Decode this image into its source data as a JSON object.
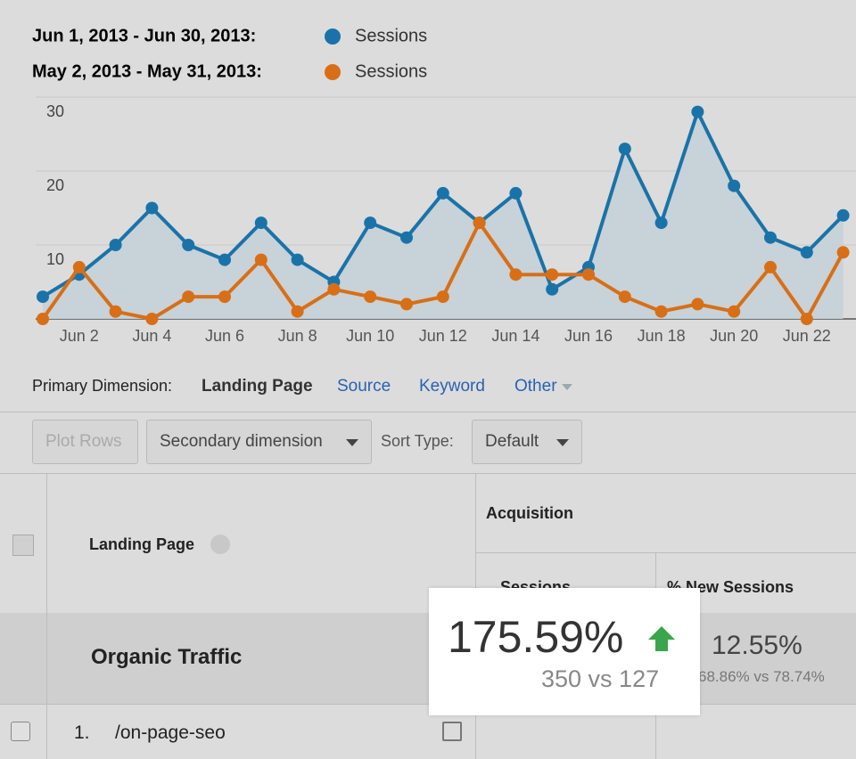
{
  "chart_data": {
    "type": "line",
    "legend": [
      {
        "period": "Jun 1, 2013 - Jun 30, 2013:",
        "name": "Sessions"
      },
      {
        "period": "May 2, 2013 - May 31, 2013:",
        "name": "Sessions"
      }
    ],
    "categories": [
      null,
      "Jun 2",
      null,
      "Jun 4",
      null,
      "Jun 6",
      null,
      "Jun 8",
      null,
      "Jun 10",
      null,
      "Jun 12",
      null,
      "Jun 14",
      null,
      "Jun 16",
      null,
      "Jun 18",
      null,
      "Jun 20",
      null,
      "Jun 22",
      null
    ],
    "series": [
      {
        "name": "Sessions",
        "color": "#1a73a8",
        "area": true,
        "values": [
          3,
          6,
          10,
          15,
          10,
          8,
          13,
          8,
          5,
          13,
          11,
          17,
          13,
          17,
          4,
          7,
          23,
          13,
          28,
          18,
          11,
          9,
          14
        ]
      },
      {
        "name": "Sessions",
        "color": "#d86f16",
        "area": false,
        "values": [
          0,
          7,
          1,
          0,
          3,
          3,
          8,
          1,
          4,
          3,
          2,
          3,
          13,
          6,
          6,
          6,
          3,
          1,
          2,
          1,
          7,
          0,
          9
        ]
      }
    ],
    "ylim": [
      0,
      30
    ],
    "yticks": [
      10,
      20,
      30
    ],
    "grid": true
  },
  "toolbar": {
    "primary_label": "Primary Dimension:",
    "active": "Landing Page",
    "links": [
      "Source",
      "Keyword",
      "Other"
    ],
    "buttons": {
      "plot_rows": "Plot Rows",
      "secondary": "Secondary dimension",
      "sort_label": "Sort Type:",
      "sort": "Default"
    }
  },
  "table": {
    "group": "Acquisition",
    "dimension": "Landing Page",
    "columns": [
      "Sessions",
      "% New Sessions"
    ],
    "segment": "Organic Traffic",
    "cells": [
      {
        "value": "175.59%",
        "compare": "350 vs 127"
      },
      {
        "value": "12.55%",
        "compare": "68.86% vs 78.74%"
      }
    ],
    "rows": [
      {
        "index": "1.",
        "page": "/on-page-seo"
      }
    ]
  }
}
